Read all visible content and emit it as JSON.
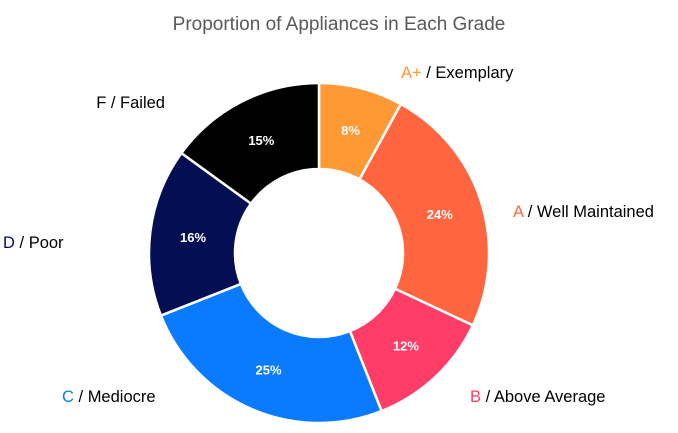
{
  "chart_data": {
    "type": "pie",
    "style": "donut",
    "title": "Proportion of Appliances in Each Grade",
    "slices": [
      {
        "grade": "A+",
        "label": "Exemplary",
        "value": 8,
        "value_label": "8%",
        "color": "#ff9933"
      },
      {
        "grade": "A",
        "label": "Well Maintained",
        "value": 24,
        "value_label": "24%",
        "color": "#ff6640"
      },
      {
        "grade": "B",
        "label": "Above Average",
        "value": 12,
        "value_label": "12%",
        "color": "#ff3d66"
      },
      {
        "grade": "C",
        "label": "Mediocre",
        "value": 25,
        "value_label": "25%",
        "color": "#0a7aff"
      },
      {
        "grade": "D",
        "label": "Poor",
        "value": 16,
        "value_label": "16%",
        "color": "#030f52"
      },
      {
        "grade": "F",
        "label": "Failed",
        "value": 15,
        "value_label": "15%",
        "color": "#000000"
      }
    ],
    "label_separator": " / "
  }
}
